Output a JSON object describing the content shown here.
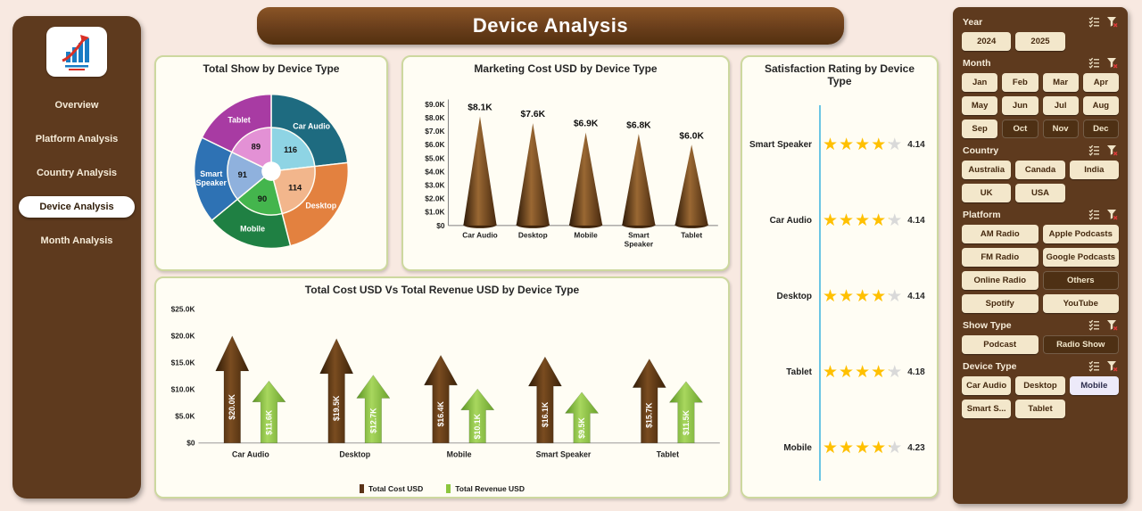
{
  "banner": {
    "title": "Device Analysis"
  },
  "sidebar": {
    "items": [
      {
        "label": "Overview",
        "active": false
      },
      {
        "label": "Platform Analysis",
        "active": false
      },
      {
        "label": "Country Analysis",
        "active": false
      },
      {
        "label": "Device Analysis",
        "active": true
      },
      {
        "label": "Month Analysis",
        "active": false
      }
    ]
  },
  "slicers": [
    {
      "label": "Year",
      "cols": 3,
      "buttons": [
        {
          "label": "2024"
        },
        {
          "label": "2025"
        }
      ]
    },
    {
      "label": "Month",
      "cols": 4,
      "buttons": [
        {
          "label": "Jan"
        },
        {
          "label": "Feb"
        },
        {
          "label": "Mar"
        },
        {
          "label": "Apr"
        },
        {
          "label": "May"
        },
        {
          "label": "Jun"
        },
        {
          "label": "Jul"
        },
        {
          "label": "Aug"
        },
        {
          "label": "Sep"
        },
        {
          "label": "Oct",
          "variant": "dark"
        },
        {
          "label": "Nov",
          "variant": "dark"
        },
        {
          "label": "Dec",
          "variant": "dark"
        }
      ]
    },
    {
      "label": "Country",
      "cols": 3,
      "buttons": [
        {
          "label": "Australia"
        },
        {
          "label": "Canada"
        },
        {
          "label": "India"
        },
        {
          "label": "UK"
        },
        {
          "label": "USA"
        }
      ]
    },
    {
      "label": "Platform",
      "cols": 2,
      "buttons": [
        {
          "label": "AM Radio"
        },
        {
          "label": "Apple Podcasts"
        },
        {
          "label": "FM Radio"
        },
        {
          "label": "Google Podcasts"
        },
        {
          "label": "Online Radio"
        },
        {
          "label": "Others",
          "variant": "dark"
        },
        {
          "label": "Spotify"
        },
        {
          "label": "YouTube"
        }
      ]
    },
    {
      "label": "Show Type",
      "cols": 2,
      "buttons": [
        {
          "label": "Podcast"
        },
        {
          "label": "Radio Show",
          "variant": "dark"
        }
      ]
    },
    {
      "label": "Device Type",
      "cols": 3,
      "buttons": [
        {
          "label": "Car Audio"
        },
        {
          "label": "Desktop"
        },
        {
          "label": "Mobile",
          "variant": "light"
        },
        {
          "label": "Smart S..."
        },
        {
          "label": "Tablet"
        }
      ]
    }
  ],
  "chart_data": [
    {
      "type": "pie",
      "title": "Total Show by Device Type",
      "categories": [
        "Car Audio",
        "Desktop",
        "Mobile",
        "Smart Speaker",
        "Tablet"
      ],
      "values": [
        116,
        114,
        90,
        91,
        89
      ],
      "colors_outer": [
        "#1e6b80",
        "#e3813f",
        "#1f8043",
        "#2e72b4",
        "#a83ba3"
      ],
      "colors_inner": [
        "#8ed4e4",
        "#f2b68c",
        "#44b54d",
        "#8fb1dd",
        "#e391d5"
      ],
      "legend_position": "none"
    },
    {
      "type": "bar",
      "variant": "cone",
      "title": "Marketing Cost USD by Device Type",
      "categories": [
        "Car Audio",
        "Desktop",
        "Mobile",
        "Smart Speaker",
        "Tablet"
      ],
      "values": [
        8100,
        7600,
        6900,
        6800,
        6000
      ],
      "value_labels": [
        "$8.1K",
        "$7.6K",
        "$6.9K",
        "$6.8K",
        "$6.0K"
      ],
      "ylim": [
        0,
        9000
      ],
      "ytick_labels": [
        "$0",
        "$1.0K",
        "$2.0K",
        "$3.0K",
        "$4.0K",
        "$5.0K",
        "$6.0K",
        "$7.0K",
        "$8.0K",
        "$9.0K"
      ],
      "bar_color": "#6b4423"
    },
    {
      "type": "bar",
      "variant": "arrow",
      "title": "Total Cost USD Vs Total Revenue USD by Device Type",
      "categories": [
        "Car Audio",
        "Desktop",
        "Mobile",
        "Smart Speaker",
        "Tablet"
      ],
      "series": [
        {
          "name": "Total Cost USD",
          "color": "#5b3317",
          "values": [
            20000,
            19500,
            16400,
            16100,
            15700
          ],
          "value_labels": [
            "$20.0K",
            "$19.5K",
            "$16.4K",
            "$16.1K",
            "$15.7K"
          ]
        },
        {
          "name": "Total Revenue USD",
          "color": "#8cc63e",
          "values": [
            11600,
            12700,
            10100,
            9500,
            11500
          ],
          "value_labels": [
            "$11.6K",
            "$12.7K",
            "$10.1K",
            "$9.5K",
            "$11.5K"
          ]
        }
      ],
      "ylim": [
        0,
        25000
      ],
      "ytick_labels": [
        "$0",
        "$5.0K",
        "$10.0K",
        "$15.0K",
        "$20.0K",
        "$25.0K"
      ],
      "legend_position": "bottom"
    },
    {
      "type": "rating",
      "title": "Satisfaction Rating by Device Type",
      "categories": [
        "Smart Speaker",
        "Car Audio",
        "Desktop",
        "Tablet",
        "Mobile"
      ],
      "values": [
        4.14,
        4.14,
        4.14,
        4.18,
        4.23
      ],
      "max_stars": 5,
      "star_color": "#ffc000",
      "star_empty_color": "#d9d9d9",
      "axis_color": "#6cc5e4"
    }
  ],
  "theme": {
    "background": "#f8e9e1",
    "panel_brown": "#5e3a1e",
    "button_cream": "#f3e7cb",
    "card_border": "#cdd89f",
    "card_background": "#fffdf4",
    "cone_brown_dark": "#2e1a08",
    "cone_brown_light": "#9a6833",
    "arrow_green_light": "#a9d65c",
    "star_gold": "#ffc000"
  }
}
